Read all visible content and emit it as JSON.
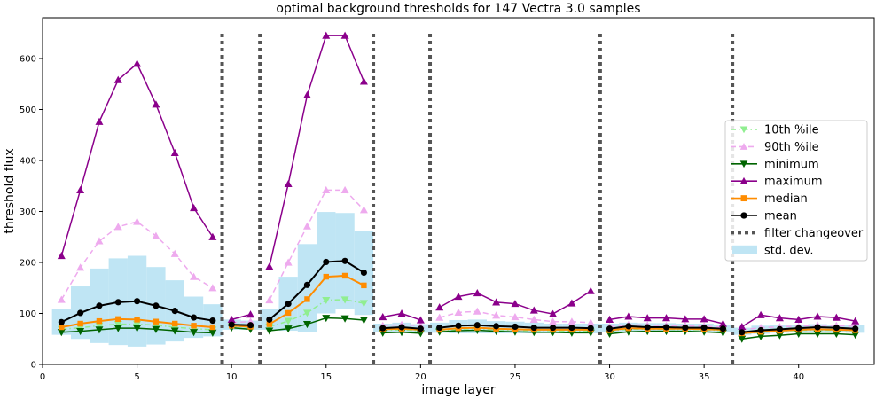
{
  "chart_data": {
    "type": "line",
    "title": "optimal background thresholds for 147 Vectra 3.0 samples",
    "xlabel": "image layer",
    "ylabel": "threshold flux",
    "xlim": [
      0,
      44
    ],
    "ylim": [
      0,
      680
    ],
    "xticks": [
      0,
      5,
      10,
      15,
      20,
      25,
      30,
      35,
      40
    ],
    "yticks": [
      0,
      100,
      200,
      300,
      400,
      500,
      600
    ],
    "grid": false,
    "legend_position": "right",
    "colors": {
      "p10": "#90ee90",
      "p90": "#eeaaee",
      "minimum": "#006400",
      "maximum": "#8b008b",
      "median": "#ff8c00",
      "mean": "#000000",
      "filter": "#555555",
      "std": "#bfe5f4"
    },
    "filter_changeovers": [
      9.5,
      11.5,
      17.5,
      20.5,
      29.5,
      36.5
    ],
    "segments": [
      {
        "x": [
          1,
          2,
          3,
          4,
          5,
          6,
          7,
          8,
          9
        ],
        "min": [
          63,
          65,
          68,
          71,
          71,
          69,
          66,
          63,
          62
        ],
        "max": [
          213,
          342,
          476,
          558,
          590,
          510,
          415,
          307,
          250
        ],
        "p10": [
          69,
          72,
          76,
          79,
          79,
          77,
          73,
          70,
          68
        ],
        "p90": [
          127,
          190,
          242,
          270,
          280,
          252,
          217,
          172,
          150
        ],
        "median": [
          73,
          80,
          85,
          89,
          88,
          84,
          80,
          76,
          73
        ],
        "mean": [
          83,
          101,
          115,
          122,
          124,
          115,
          105,
          92,
          86
        ],
        "std_low": [
          58,
          50,
          42,
          38,
          35,
          39,
          45,
          52,
          55
        ],
        "std_high": [
          108,
          153,
          188,
          208,
          213,
          191,
          165,
          133,
          118
        ]
      },
      {
        "x": [
          10,
          11
        ],
        "min": [
          72,
          69
        ],
        "max": [
          88,
          98
        ],
        "p10": [
          75,
          73
        ],
        "p90": [
          82,
          84
        ],
        "median": [
          76,
          74
        ],
        "mean": [
          78,
          77
        ],
        "std_low": [
          68,
          68
        ],
        "std_high": [
          88,
          86
        ]
      },
      {
        "x": [
          12,
          13,
          14,
          15,
          16,
          17
        ],
        "min": [
          66,
          70,
          79,
          91,
          90,
          87
        ],
        "max": [
          192,
          354,
          528,
          645,
          645,
          555
        ],
        "p10": [
          74,
          85,
          101,
          126,
          127,
          120
        ],
        "p90": [
          126,
          200,
          271,
          342,
          342,
          303
        ],
        "median": [
          79,
          101,
          128,
          172,
          174,
          155
        ],
        "mean": [
          88,
          119,
          156,
          201,
          203,
          180
        ],
        "std_low": [
          68,
          66,
          64,
          100,
          108,
          97
        ],
        "std_high": [
          108,
          172,
          236,
          299,
          297,
          262
        ]
      },
      {
        "x": [
          18,
          19,
          20
        ],
        "min": [
          62,
          63,
          61
        ],
        "max": [
          93,
          100,
          87
        ],
        "p10": [
          67,
          68,
          66
        ],
        "p90": [
          76,
          78,
          76
        ],
        "median": [
          69,
          70,
          68
        ],
        "mean": [
          71,
          73,
          70
        ],
        "std_low": [
          63,
          63,
          62
        ],
        "std_high": [
          80,
          82,
          79
        ]
      },
      {
        "x": [
          21,
          22,
          23,
          24,
          25,
          26,
          27,
          28,
          29
        ],
        "min": [
          64,
          66,
          67,
          65,
          64,
          63,
          63,
          62,
          62
        ],
        "max": [
          112,
          133,
          140,
          122,
          119,
          106,
          99,
          120,
          144
        ],
        "p10": [
          66,
          69,
          70,
          68,
          67,
          66,
          66,
          65,
          65
        ],
        "p90": [
          92,
          102,
          104,
          96,
          93,
          88,
          84,
          84,
          82
        ],
        "median": [
          68,
          71,
          72,
          70,
          69,
          68,
          68,
          68,
          68
        ],
        "mean": [
          72,
          76,
          77,
          75,
          74,
          72,
          72,
          72,
          71
        ],
        "std_low": [
          62,
          61,
          61,
          61,
          61,
          61,
          61,
          61,
          61
        ],
        "std_high": [
          82,
          87,
          88,
          85,
          84,
          82,
          80,
          80,
          80
        ]
      },
      {
        "x": [
          30,
          31,
          32,
          33,
          34,
          35,
          36
        ],
        "min": [
          60,
          64,
          65,
          65,
          65,
          64,
          62
        ],
        "max": [
          88,
          94,
          91,
          91,
          89,
          89,
          80
        ],
        "p10": [
          66,
          69,
          69,
          69,
          68,
          68,
          66
        ],
        "p90": [
          74,
          78,
          77,
          76,
          76,
          75,
          73
        ],
        "median": [
          67,
          71,
          70,
          70,
          70,
          69,
          68
        ],
        "mean": [
          70,
          75,
          73,
          73,
          72,
          72,
          70
        ],
        "std_low": [
          63,
          64,
          64,
          64,
          64,
          64,
          63
        ],
        "std_high": [
          80,
          82,
          81,
          81,
          80,
          80,
          78
        ]
      },
      {
        "x": [
          37,
          38,
          39,
          40,
          41,
          42,
          43
        ],
        "min": [
          50,
          55,
          57,
          60,
          60,
          60,
          58
        ],
        "max": [
          74,
          97,
          91,
          88,
          94,
          92,
          85
        ],
        "p10": [
          60,
          63,
          65,
          67,
          67,
          67,
          66
        ],
        "p90": [
          68,
          72,
          74,
          75,
          77,
          76,
          75
        ],
        "median": [
          61,
          64,
          66,
          68,
          69,
          68,
          67
        ],
        "mean": [
          63,
          67,
          69,
          71,
          73,
          72,
          70
        ],
        "std_low": [
          58,
          60,
          62,
          63,
          63,
          63,
          62
        ],
        "std_high": [
          72,
          76,
          77,
          78,
          79,
          78,
          77
        ]
      }
    ],
    "legend": [
      {
        "key": "p10",
        "label": "10th %ile",
        "style": "dashdot",
        "marker": "tri-down"
      },
      {
        "key": "p90",
        "label": "90th %ile",
        "style": "dashed",
        "marker": "tri-up"
      },
      {
        "key": "minimum",
        "label": "minimum",
        "style": "solid",
        "marker": "tri-down"
      },
      {
        "key": "maximum",
        "label": "maximum",
        "style": "solid",
        "marker": "tri-up"
      },
      {
        "key": "median",
        "label": "median",
        "style": "solid",
        "marker": "square"
      },
      {
        "key": "mean",
        "label": "mean",
        "style": "solid",
        "marker": "circle"
      },
      {
        "key": "filter",
        "label": "filter changeover",
        "style": "dotted",
        "marker": "none"
      },
      {
        "key": "std",
        "label": "std. dev.",
        "style": "patch",
        "marker": "none"
      }
    ]
  }
}
